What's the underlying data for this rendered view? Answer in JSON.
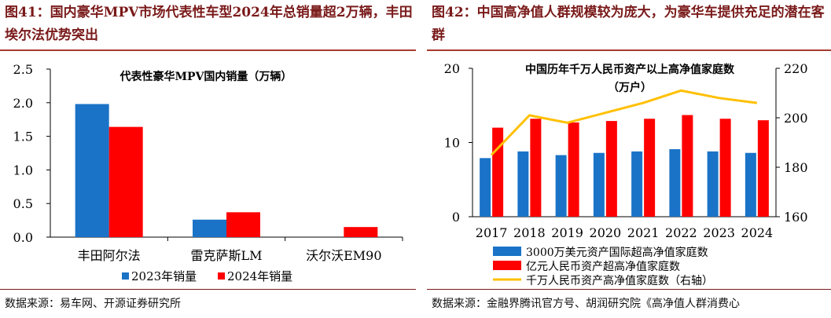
{
  "left": {
    "figure_title": "图41：国内豪华MPV市场代表性车型2024年总销量超2万辆，丰田埃尔法优势突出",
    "source": "数据来源：易车网、开源证券研究所",
    "chart_data": {
      "type": "bar",
      "title": "代表性豪华MPV国内销量（万辆）",
      "categories": [
        "丰田阿尔法",
        "雷克萨斯LM",
        "沃尔沃EM90"
      ],
      "series": [
        {
          "name": "2023年销量",
          "values": [
            1.98,
            0.26,
            0.0
          ],
          "color": "#1a73c7"
        },
        {
          "name": "2024年销量",
          "values": [
            1.64,
            0.37,
            0.15
          ],
          "color": "#ff0000"
        }
      ],
      "yticks": [
        "0.0",
        "0.5",
        "1.0",
        "1.5",
        "2.0",
        "2.5"
      ],
      "ylim": [
        0,
        2.5
      ],
      "legend_position": "bottom"
    }
  },
  "right": {
    "figure_title": "图42：中国高净值人群规模较为庞大，为豪华车提供充足的潜在客群",
    "source": "数据来源：金融界腾讯官方号、胡润研究院《高净值人群消费心",
    "chart_data": {
      "type": "bar+line",
      "title_line1": "中国历年千万人民币资产以上高净值家庭数",
      "title_line2": "（万户）",
      "categories": [
        "2017",
        "2018",
        "2019",
        "2020",
        "2021",
        "2022",
        "2023",
        "2024"
      ],
      "series": [
        {
          "name": "3000万美元资产国际超高净值家庭数",
          "axis": "left",
          "type": "bar",
          "color": "#1a73c7",
          "values": [
            7.9,
            8.8,
            8.3,
            8.6,
            8.8,
            9.1,
            8.8,
            8.6
          ]
        },
        {
          "name": "亿元人民币资产超高净值家庭数",
          "axis": "left",
          "type": "bar",
          "color": "#ff0000",
          "values": [
            12.0,
            13.2,
            12.7,
            12.9,
            13.2,
            13.7,
            13.2,
            13.0
          ]
        },
        {
          "name": "千万人民币资产高净值家庭数（右轴）",
          "axis": "right",
          "type": "line",
          "color": "#ffc000",
          "values": [
            185.0,
            201.0,
            198.0,
            202.0,
            206.0,
            211.0,
            208.0,
            206.0
          ]
        }
      ],
      "y_left_ticks": [
        "0",
        "10",
        "20"
      ],
      "y_left_lim": [
        0,
        20
      ],
      "y_right_ticks": [
        "160",
        "180",
        "200",
        "220"
      ],
      "y_right_lim": [
        160,
        220
      ],
      "legend_position": "bottom"
    }
  }
}
